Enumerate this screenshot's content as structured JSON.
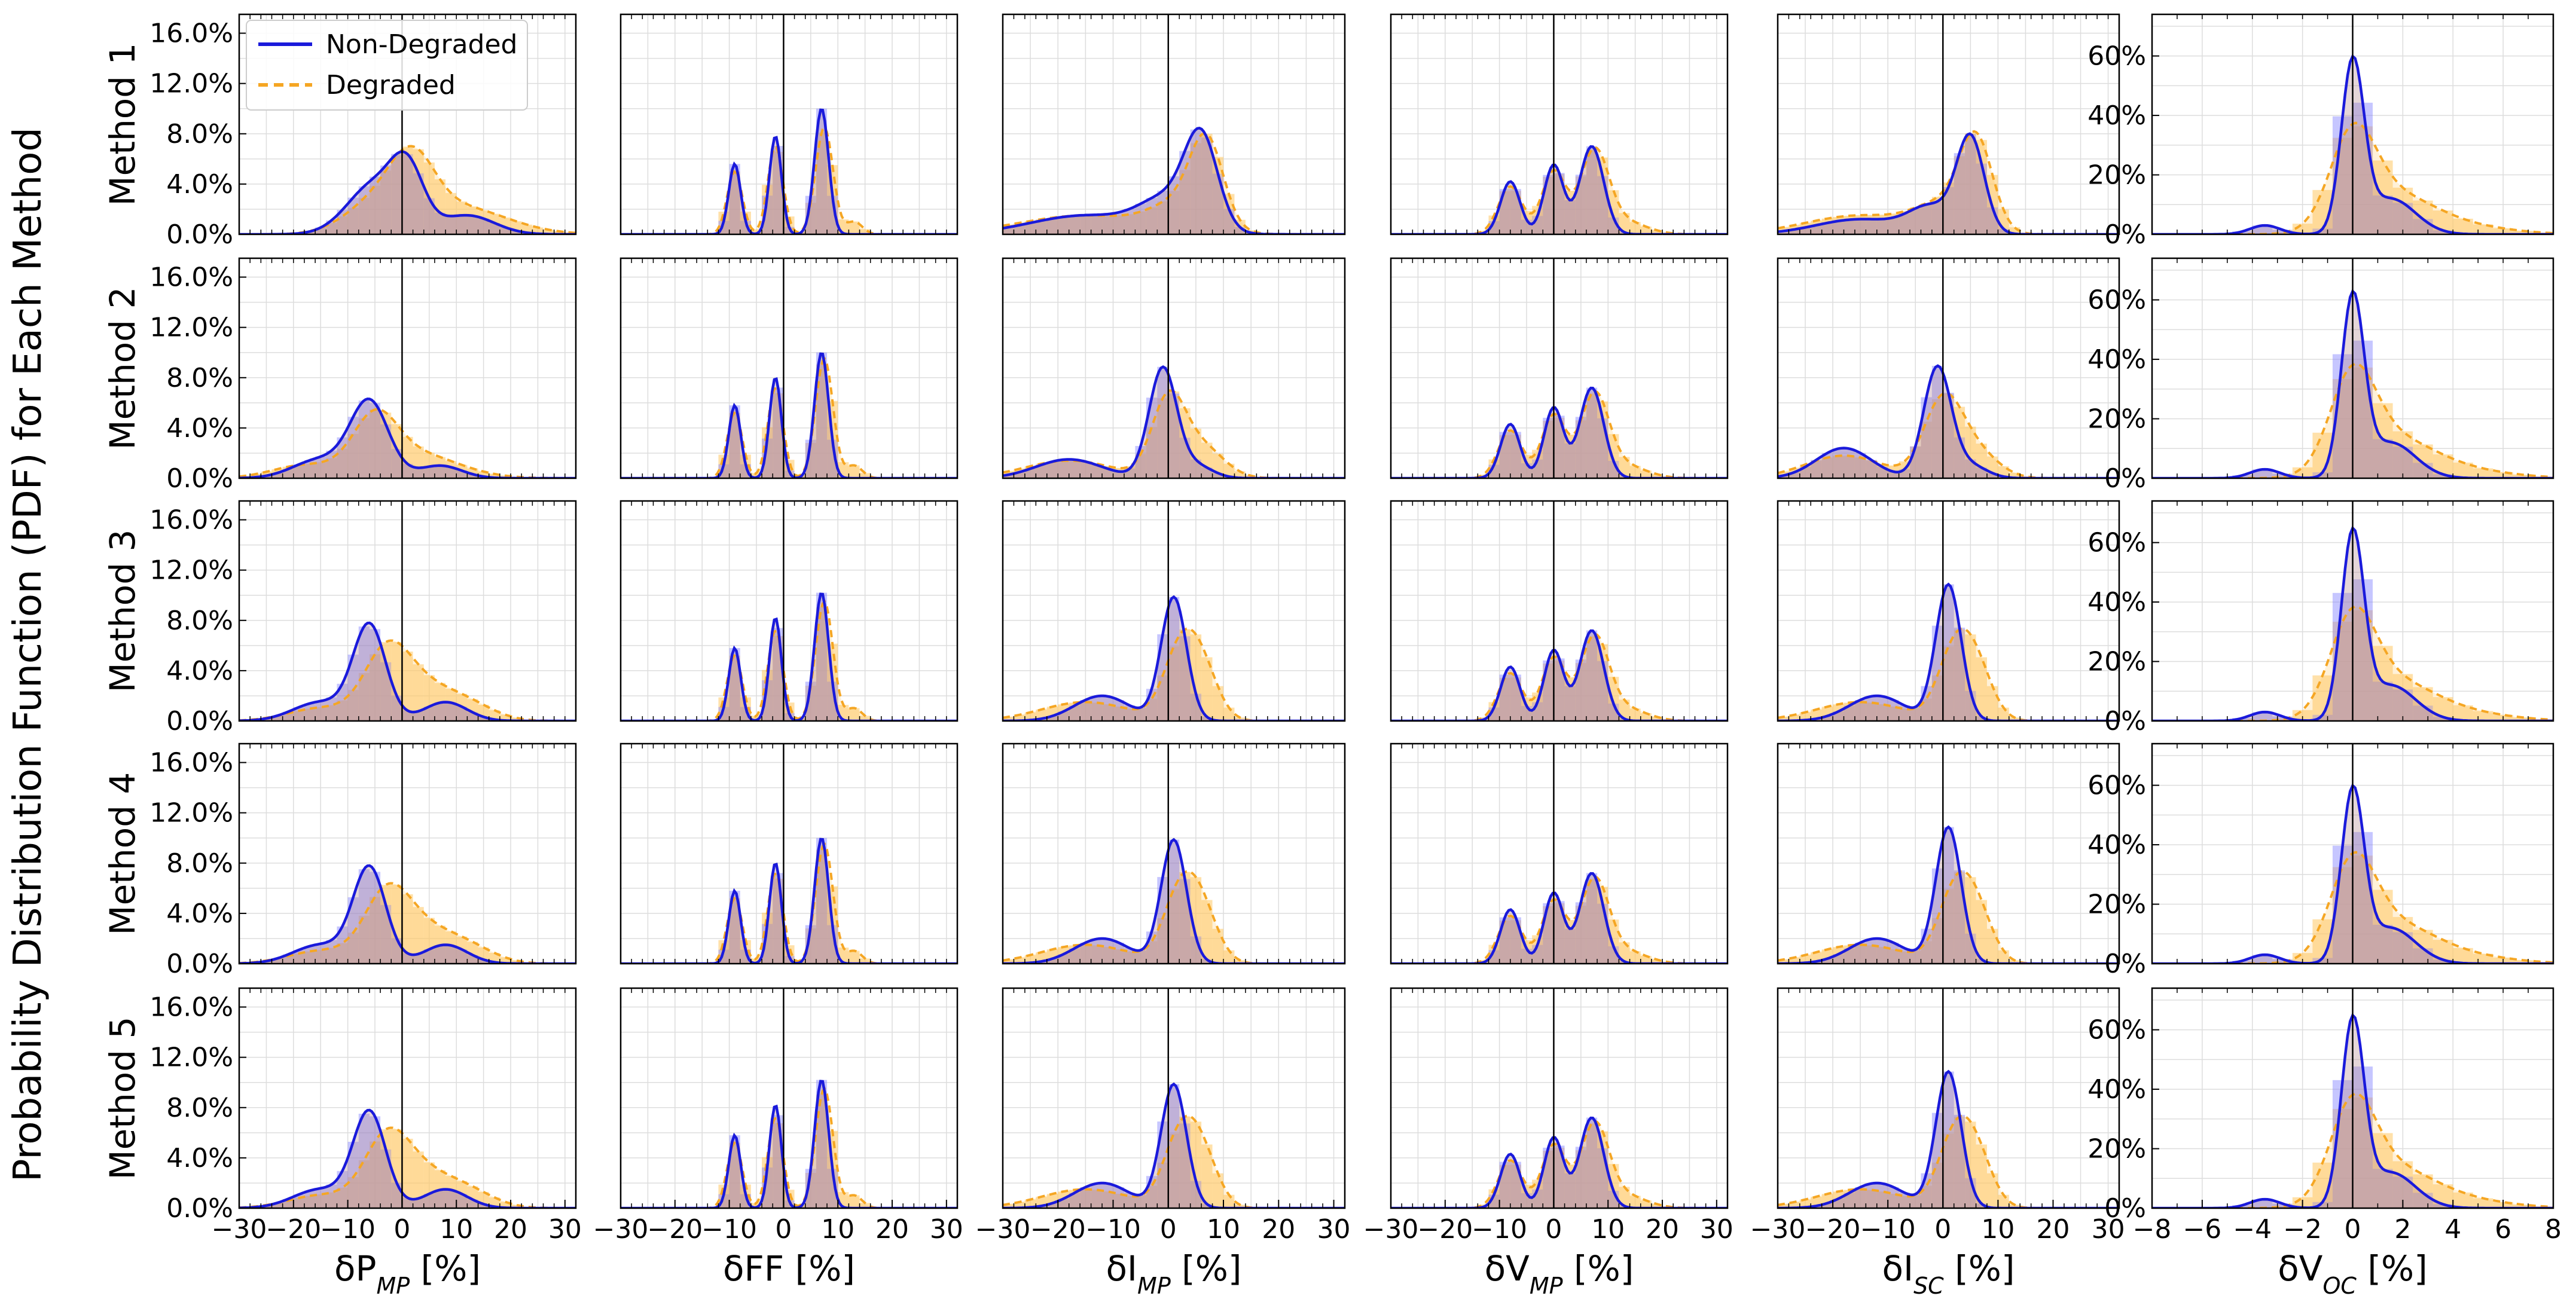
{
  "figure": {
    "ylabel": "Probability Distribution Function (PDF) for Each Method",
    "legend": {
      "placement": "top-left of first panel",
      "entries": [
        "Non-Degraded",
        "Degraded"
      ]
    }
  },
  "colors": {
    "non_degraded": "#1a1adb",
    "degraded": "#f5a623",
    "hist_non_degraded": "#8080ff",
    "hist_degraded": "#ffc864",
    "overlap": "#b5898f",
    "zero_line": "#000000",
    "grid": "#dddddd"
  },
  "rows": [
    "Method 1",
    "Method 2",
    "Method 3",
    "Method 4",
    "Method 5"
  ],
  "columns": [
    {
      "xlabel_main": "δP",
      "xlabel_sub": "MP",
      "xlabel_unit": " [%]"
    },
    {
      "xlabel_main": "δFF",
      "xlabel_sub": "",
      "xlabel_unit": " [%]"
    },
    {
      "xlabel_main": "δI",
      "xlabel_sub": "MP",
      "xlabel_unit": " [%]"
    },
    {
      "xlabel_main": "δV",
      "xlabel_sub": "MP",
      "xlabel_unit": " [%]"
    },
    {
      "xlabel_main": "δI",
      "xlabel_sub": "SC",
      "xlabel_unit": " [%]"
    },
    {
      "xlabel_main": "δV",
      "xlabel_sub": "OC",
      "xlabel_unit": " [%]"
    }
  ],
  "chart_data": {
    "type": "area",
    "grid": true,
    "col1_yticks": [
      "0.0%",
      "4.0%",
      "8.0%",
      "12.0%",
      "16.0%"
    ],
    "col6_yticks": [
      "0%",
      "20%",
      "40%",
      "60%"
    ],
    "xticks_pct": [
      "−30",
      "−20",
      "−10",
      "0",
      "10",
      "20",
      "30"
    ],
    "xticks_voc": [
      "−8",
      "−6",
      "−4",
      "−2",
      "0",
      "2",
      "4",
      "6",
      "8"
    ],
    "xlim_pct": [
      -30,
      32
    ],
    "xlim_voc": [
      -8,
      8
    ],
    "ylim_pct": [
      0,
      17.5
    ],
    "ylim_voc": [
      0,
      74
    ],
    "panels": [
      [
        {
          "nd": [
            [
              -5,
              4.0,
              5
            ],
            [
              1,
              4.3,
              3
            ],
            [
              12,
              1.5,
              5
            ]
          ],
          "dg": [
            [
              -4,
              2.5,
              6
            ],
            [
              2,
              4.0,
              4
            ],
            [
              10,
              2.2,
              9
            ]
          ]
        },
        {
          "nd": [
            [
              -9,
              5.6,
              1.1
            ],
            [
              -1.5,
              7.8,
              1.1
            ],
            [
              7,
              10.0,
              1.3
            ]
          ],
          "dg": [
            [
              -9,
              5.0,
              1.4
            ],
            [
              -1.5,
              7.0,
              1.4
            ],
            [
              7.5,
              8.5,
              1.6
            ],
            [
              13,
              1.0,
              1.5
            ]
          ]
        },
        {
          "nd": [
            [
              -15,
              1.5,
              10
            ],
            [
              0,
              2.5,
              5
            ],
            [
              6,
              7.0,
              3
            ]
          ],
          "dg": [
            [
              -15,
              1.5,
              12
            ],
            [
              2,
              2.0,
              5
            ],
            [
              7,
              6.5,
              3
            ]
          ]
        },
        {
          "nd": [
            [
              -8,
              4.2,
              1.8
            ],
            [
              0,
              5.5,
              1.8
            ],
            [
              7,
              7.0,
              2.2
            ]
          ],
          "dg": [
            [
              -8,
              3.8,
              2.2
            ],
            [
              0,
              5.0,
              2.2
            ],
            [
              7.5,
              6.5,
              2.6
            ],
            [
              13,
              1.0,
              4
            ]
          ]
        },
        {
          "nd": [
            [
              -15,
              1.2,
              8
            ],
            [
              -2,
              2.0,
              4
            ],
            [
              5,
              7.5,
              2.5
            ]
          ],
          "dg": [
            [
              -15,
              1.5,
              10
            ],
            [
              0,
              2.0,
              5
            ],
            [
              6,
              7.0,
              3
            ]
          ]
        },
        {
          "nd": [
            [
              0,
              56,
              0.45
            ],
            [
              1.5,
              12,
              1.0
            ],
            [
              -3.5,
              3,
              0.6
            ]
          ],
          "dg": [
            [
              0,
              29,
              0.9
            ],
            [
              1.5,
              12,
              1.6
            ],
            [
              4,
              3,
              2
            ]
          ]
        }
      ],
      [
        {
          "nd": [
            [
              -6,
              6.0,
              3.5
            ],
            [
              -15,
              1.5,
              5
            ],
            [
              7,
              1.0,
              4
            ]
          ],
          "dg": [
            [
              -5,
              4.0,
              4
            ],
            [
              2,
              2.0,
              8
            ],
            [
              -18,
              1.0,
              6
            ]
          ]
        },
        {
          "nd": [
            [
              -9,
              5.8,
              1.1
            ],
            [
              -1.5,
              8.0,
              1.1
            ],
            [
              7,
              10.0,
              1.3
            ]
          ],
          "dg": [
            [
              -9,
              5.2,
              1.4
            ],
            [
              -1.5,
              7.2,
              1.4
            ],
            [
              7.5,
              9.5,
              1.6
            ],
            [
              13,
              1.0,
              1.5
            ]
          ]
        },
        {
          "nd": [
            [
              -18,
              1.5,
              6
            ],
            [
              -1,
              8.7,
              2.5
            ],
            [
              5,
              1.0,
              3
            ]
          ],
          "dg": [
            [
              -18,
              1.4,
              8
            ],
            [
              0,
              6.0,
              3
            ],
            [
              6,
              2.5,
              4
            ]
          ]
        },
        {
          "nd": [
            [
              -8,
              4.3,
              1.8
            ],
            [
              0,
              5.6,
              1.8
            ],
            [
              7,
              7.2,
              2.2
            ]
          ],
          "dg": [
            [
              -8,
              3.8,
              2.2
            ],
            [
              0,
              5.0,
              2.2
            ],
            [
              7.5,
              6.5,
              2.6
            ],
            [
              13,
              1.0,
              4
            ]
          ]
        },
        {
          "nd": [
            [
              -18,
              2.4,
              5
            ],
            [
              -1,
              8.8,
              2.5
            ],
            [
              5,
              1.0,
              3
            ]
          ],
          "dg": [
            [
              -18,
              1.8,
              7
            ],
            [
              0,
              6.0,
              3.5
            ],
            [
              6,
              2.0,
              4
            ]
          ]
        },
        {
          "nd": [
            [
              0,
              59,
              0.45
            ],
            [
              1.5,
              12,
              1.0
            ],
            [
              -3.5,
              3,
              0.6
            ]
          ],
          "dg": [
            [
              0,
              30,
              0.9
            ],
            [
              1.5,
              12,
              1.6
            ],
            [
              4,
              3,
              2
            ]
          ]
        }
      ],
      [
        {
          "nd": [
            [
              -6,
              7.5,
              3
            ],
            [
              -15,
              1.5,
              5
            ],
            [
              8,
              1.5,
              4
            ]
          ],
          "dg": [
            [
              -3,
              4.0,
              4
            ],
            [
              2,
              3.0,
              6
            ],
            [
              12,
              1.2,
              5
            ],
            [
              -15,
              1.0,
              6
            ]
          ]
        },
        {
          "nd": [
            [
              -9,
              5.8,
              1.1
            ],
            [
              -1.5,
              8.2,
              1.1
            ],
            [
              7,
              10.2,
              1.3
            ]
          ],
          "dg": [
            [
              -9,
              5.2,
              1.4
            ],
            [
              -1.5,
              7.2,
              1.4
            ],
            [
              7.5,
              9.5,
              1.6
            ],
            [
              13,
              1.0,
              1.5
            ]
          ]
        },
        {
          "nd": [
            [
              -12,
              2.0,
              5
            ],
            [
              1,
              9.8,
              2.3
            ]
          ],
          "dg": [
            [
              -15,
              1.5,
              8
            ],
            [
              2,
              5.0,
              3
            ],
            [
              6,
              4.0,
              3
            ]
          ]
        },
        {
          "nd": [
            [
              -8,
              4.3,
              1.8
            ],
            [
              0,
              5.6,
              1.8
            ],
            [
              7,
              7.2,
              2.2
            ]
          ],
          "dg": [
            [
              -8,
              3.8,
              2.2
            ],
            [
              0,
              5.0,
              2.2
            ],
            [
              7.5,
              6.5,
              2.6
            ],
            [
              13,
              1.0,
              4
            ]
          ]
        },
        {
          "nd": [
            [
              -12,
              2.0,
              5
            ],
            [
              1,
              10.8,
              2.3
            ]
          ],
          "dg": [
            [
              -15,
              1.5,
              8
            ],
            [
              2,
              5.0,
              3
            ],
            [
              6,
              4.0,
              3
            ]
          ]
        },
        {
          "nd": [
            [
              0,
              61,
              0.45
            ],
            [
              1.5,
              12,
              1.0
            ],
            [
              -3.5,
              3,
              0.6
            ]
          ],
          "dg": [
            [
              0,
              30,
              0.9
            ],
            [
              1.5,
              12,
              1.6
            ],
            [
              4,
              3,
              2
            ]
          ]
        }
      ],
      [
        {
          "nd": [
            [
              -6,
              7.5,
              3
            ],
            [
              -15,
              1.5,
              5
            ],
            [
              8,
              1.5,
              4
            ]
          ],
          "dg": [
            [
              -3,
              4.0,
              4
            ],
            [
              2,
              3.0,
              6
            ],
            [
              12,
              1.2,
              5
            ],
            [
              -15,
              1.0,
              6
            ]
          ]
        },
        {
          "nd": [
            [
              -9,
              5.8,
              1.1
            ],
            [
              -1.5,
              8.0,
              1.1
            ],
            [
              7,
              10.0,
              1.3
            ]
          ],
          "dg": [
            [
              -9,
              5.2,
              1.4
            ],
            [
              -1.5,
              7.2,
              1.4
            ],
            [
              7.5,
              9.5,
              1.6
            ],
            [
              13,
              1.0,
              1.5
            ]
          ]
        },
        {
          "nd": [
            [
              -12,
              2.0,
              5
            ],
            [
              1,
              9.8,
              2.3
            ]
          ],
          "dg": [
            [
              -15,
              1.5,
              8
            ],
            [
              2,
              5.0,
              3
            ],
            [
              6,
              4.0,
              3
            ]
          ]
        },
        {
          "nd": [
            [
              -8,
              4.3,
              1.8
            ],
            [
              0,
              5.6,
              1.8
            ],
            [
              7,
              7.2,
              2.2
            ]
          ],
          "dg": [
            [
              -8,
              3.8,
              2.2
            ],
            [
              0,
              5.0,
              2.2
            ],
            [
              7.5,
              6.5,
              2.6
            ],
            [
              13,
              1.0,
              4
            ]
          ]
        },
        {
          "nd": [
            [
              -12,
              2.0,
              5
            ],
            [
              1,
              10.8,
              2.3
            ]
          ],
          "dg": [
            [
              -15,
              1.5,
              8
            ],
            [
              2,
              5.0,
              3
            ],
            [
              6,
              4.0,
              3
            ]
          ]
        },
        {
          "nd": [
            [
              0,
              56,
              0.45
            ],
            [
              1.5,
              12,
              1.0
            ],
            [
              -3.5,
              3,
              0.6
            ]
          ],
          "dg": [
            [
              0,
              29,
              0.9
            ],
            [
              1.5,
              12,
              1.6
            ],
            [
              4,
              3,
              2
            ]
          ]
        }
      ],
      [
        {
          "nd": [
            [
              -6,
              7.5,
              3
            ],
            [
              -15,
              1.5,
              5
            ],
            [
              8,
              1.5,
              4
            ]
          ],
          "dg": [
            [
              -3,
              4.0,
              4
            ],
            [
              2,
              3.0,
              6
            ],
            [
              12,
              1.2,
              5
            ],
            [
              -15,
              1.0,
              6
            ]
          ]
        },
        {
          "nd": [
            [
              -9,
              5.8,
              1.1
            ],
            [
              -1.5,
              8.2,
              1.1
            ],
            [
              7,
              10.2,
              1.3
            ]
          ],
          "dg": [
            [
              -9,
              5.2,
              1.4
            ],
            [
              -1.5,
              7.2,
              1.4
            ],
            [
              7.5,
              9.5,
              1.6
            ],
            [
              13,
              1.0,
              1.5
            ]
          ]
        },
        {
          "nd": [
            [
              -12,
              2.0,
              5
            ],
            [
              1,
              9.8,
              2.3
            ]
          ],
          "dg": [
            [
              -15,
              1.5,
              8
            ],
            [
              2,
              5.0,
              3
            ],
            [
              6,
              4.0,
              3
            ]
          ]
        },
        {
          "nd": [
            [
              -8,
              4.3,
              1.8
            ],
            [
              0,
              5.6,
              1.8
            ],
            [
              7,
              7.2,
              2.2
            ]
          ],
          "dg": [
            [
              -8,
              3.8,
              2.2
            ],
            [
              0,
              5.0,
              2.2
            ],
            [
              7.5,
              6.5,
              2.6
            ],
            [
              13,
              1.0,
              4
            ]
          ]
        },
        {
          "nd": [
            [
              -12,
              2.0,
              5
            ],
            [
              1,
              10.8,
              2.3
            ]
          ],
          "dg": [
            [
              -15,
              1.5,
              8
            ],
            [
              2,
              5.0,
              3
            ],
            [
              6,
              4.0,
              3
            ]
          ]
        },
        {
          "nd": [
            [
              0,
              61,
              0.45
            ],
            [
              1.5,
              12,
              1.0
            ],
            [
              -3.5,
              3,
              0.6
            ]
          ],
          "dg": [
            [
              0,
              30,
              0.9
            ],
            [
              1.5,
              12,
              1.6
            ],
            [
              4,
              3,
              2
            ]
          ]
        }
      ]
    ]
  }
}
